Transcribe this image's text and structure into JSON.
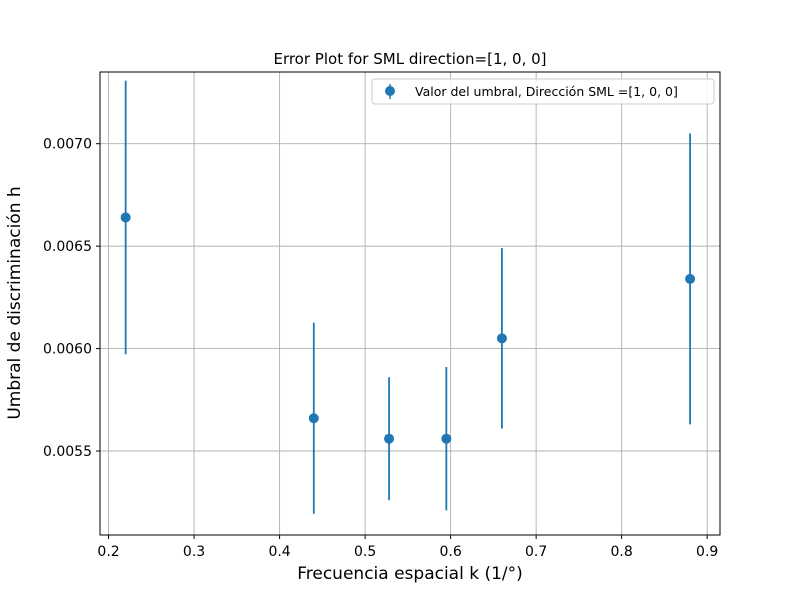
{
  "chart_data": {
    "type": "scatter",
    "title": "Error Plot for SML direction=[1, 0, 0]",
    "xlabel": "Frecuencia espacial k (1/°)",
    "ylabel": "Umbral de discriminación h",
    "xlim": [
      0.19,
      0.915
    ],
    "ylim": [
      0.00509,
      0.00735
    ],
    "grid": true,
    "legend_position": "top-right",
    "x_ticks": [
      0.2,
      0.3,
      0.4,
      0.5,
      0.6,
      0.7,
      0.8,
      0.9
    ],
    "x_tick_labels": [
      "0.2",
      "0.3",
      "0.4",
      "0.5",
      "0.6",
      "0.7",
      "0.8",
      "0.9"
    ],
    "y_ticks": [
      0.0055,
      0.006,
      0.0065,
      0.007
    ],
    "y_tick_labels": [
      "0.0055",
      "0.0060",
      "0.0065",
      "0.0070"
    ],
    "series": [
      {
        "name": "Valor del umbral, Dirección SML =[1, 0, 0]",
        "color": "#1f77b4",
        "x": [
          0.22,
          0.44,
          0.528,
          0.595,
          0.66,
          0.88
        ],
        "y": [
          0.00664,
          0.00566,
          0.00556,
          0.00556,
          0.00605,
          0.00634
        ],
        "yerr": [
          0.000668,
          0.000466,
          0.0003,
          0.00035,
          0.00044,
          0.00071
        ]
      }
    ]
  }
}
